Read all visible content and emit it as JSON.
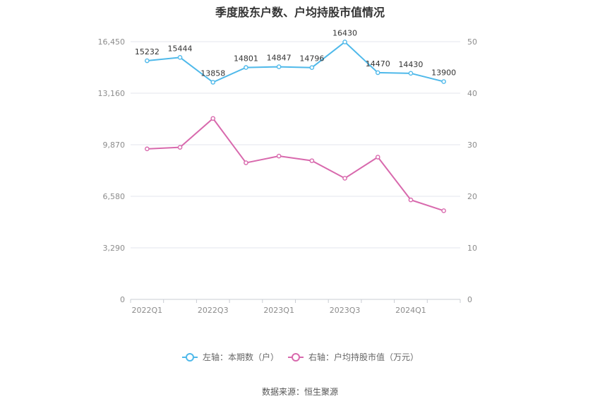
{
  "chart_data": {
    "type": "line",
    "title": "季度股东户数、户均持股市值情况",
    "categories": [
      "2022Q1",
      "2022Q2",
      "2022Q3",
      "2022Q4",
      "2023Q1",
      "2023Q2",
      "2023Q3",
      "2023Q4",
      "2024Q1",
      "2024Q2"
    ],
    "x_tick_labels": [
      "2022Q1",
      "2022Q3",
      "2023Q1",
      "2023Q3",
      "2024Q1"
    ],
    "left_axis": {
      "ticks": [
        "0",
        "3,290",
        "6,580",
        "9,870",
        "13,160",
        "16,450"
      ],
      "ylim": [
        0,
        16450
      ]
    },
    "right_axis": {
      "ticks": [
        "0",
        "10",
        "20",
        "30",
        "40",
        "50"
      ],
      "ylim": [
        0,
        50
      ]
    },
    "series": [
      {
        "name": "左轴：本期数（户）",
        "axis": "left",
        "color": "#4fb9ea",
        "values": [
          15232,
          15444,
          13858,
          14801,
          14847,
          14796,
          16430,
          14470,
          14430,
          13900
        ],
        "labels": [
          "15232",
          "15444",
          "13858",
          "14801",
          "14847",
          "14796",
          "16430",
          "14470",
          "14430",
          "13900"
        ]
      },
      {
        "name": "右轴：户均持股市值（万元）",
        "axis": "right",
        "color": "#d869ad",
        "values": [
          29.2,
          29.5,
          35.1,
          26.5,
          27.8,
          26.9,
          23.5,
          27.6,
          19.3,
          17.2
        ]
      }
    ],
    "legend_position": "bottom-center",
    "grid": true
  },
  "source": "数据来源：恒生聚源"
}
